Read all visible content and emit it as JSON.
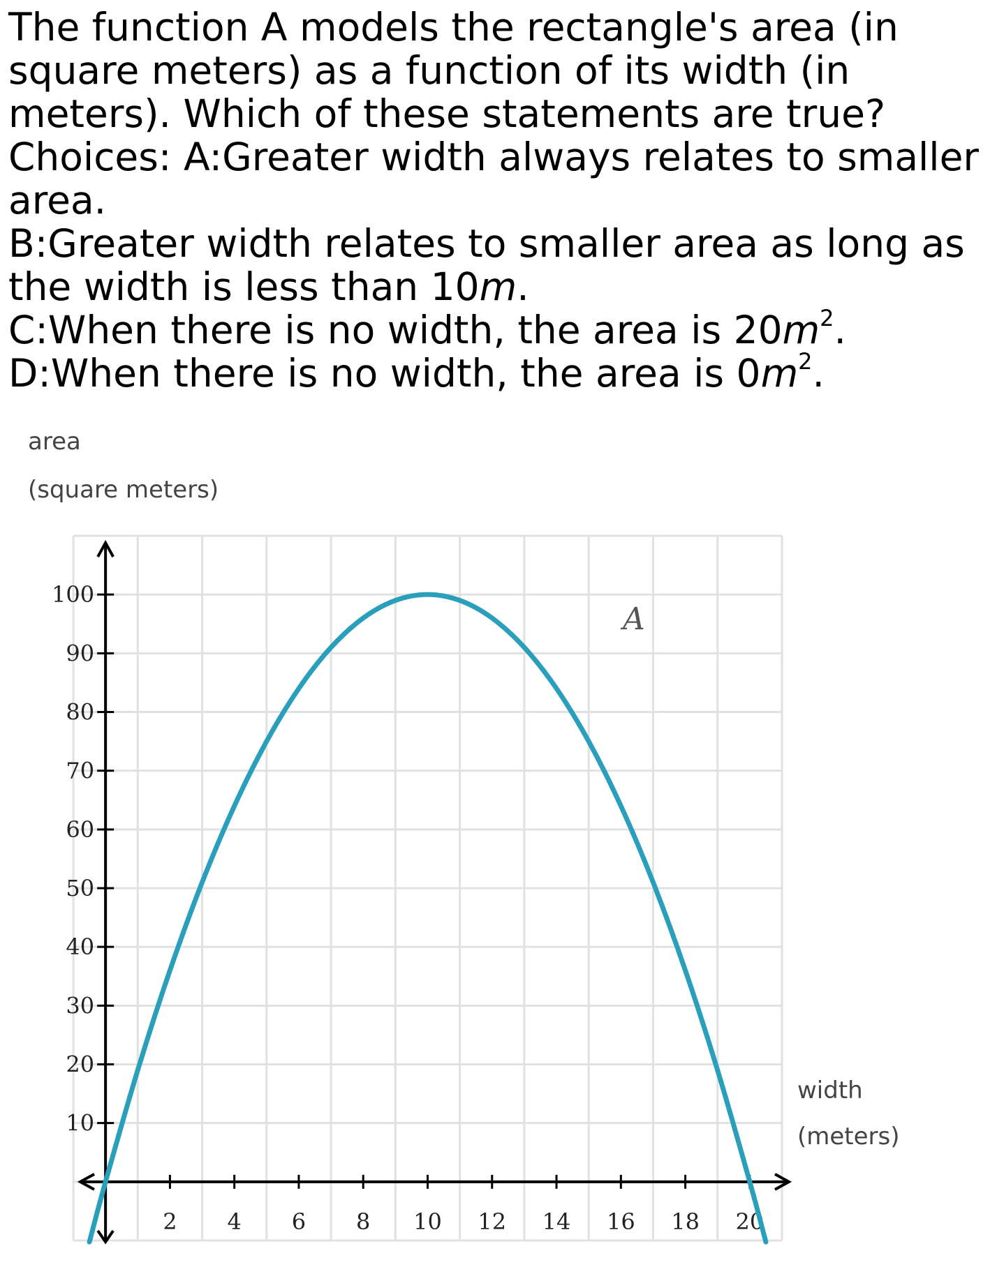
{
  "question": {
    "line1": "The function A models the rectangle's area (in",
    "line2": "square meters) as a function of its width (in",
    "line3": "meters). Which of these statements are true?",
    "line4": "Choices: A:Greater width always relates to smaller",
    "line5": "area.",
    "choice_b_prefix": "B:Greater width relates to smaller area as long as",
    "choice_b_line2": "the width is less than 10",
    "choice_b_unit": "m",
    "choice_b_end": ".",
    "choice_c_prefix": "C:When there is no width, the area is 20",
    "choice_c_unit": "m",
    "choice_c_exp": "2",
    "choice_c_end": ".",
    "choice_d_prefix": "D:When there is no width, the area is 0",
    "choice_d_unit": "m",
    "choice_d_exp": "2",
    "choice_d_end": "."
  },
  "chart_data": {
    "type": "line",
    "title": "",
    "ylabel_line1": "area",
    "ylabel_line2": "(square meters)",
    "xlabel_line1": "width",
    "xlabel_line2": "(meters)",
    "curve_label": "A",
    "xlim": [
      -1,
      21
    ],
    "ylim": [
      -10,
      110
    ],
    "x_ticks": [
      2,
      4,
      6,
      8,
      10,
      12,
      14,
      16,
      18,
      20
    ],
    "y_ticks": [
      10,
      20,
      30,
      40,
      50,
      60,
      70,
      80,
      90,
      100
    ],
    "x_tick_labels": [
      "2",
      "4",
      "6",
      "8",
      "10",
      "12",
      "14",
      "16",
      "18",
      "20"
    ],
    "y_tick_labels": [
      "10",
      "20",
      "30",
      "40",
      "50",
      "60",
      "70",
      "80",
      "90",
      "100"
    ],
    "grid": true,
    "series": [
      {
        "name": "A",
        "color": "#2a9fbc",
        "x": [
          -0.5,
          0,
          1,
          2,
          3,
          4,
          5,
          6,
          7,
          8,
          9,
          10,
          11,
          12,
          13,
          14,
          15,
          16,
          17,
          18,
          19,
          20,
          20.5
        ],
        "y": [
          -10.25,
          0,
          19,
          36,
          51,
          64,
          75,
          84,
          91,
          96,
          99,
          100,
          99,
          96,
          91,
          84,
          75,
          64,
          51,
          36,
          19,
          0,
          -10.25
        ]
      }
    ],
    "colors": {
      "grid": "#e1e1e1",
      "axis": "#000000",
      "curve": "#2a9fbc"
    }
  }
}
